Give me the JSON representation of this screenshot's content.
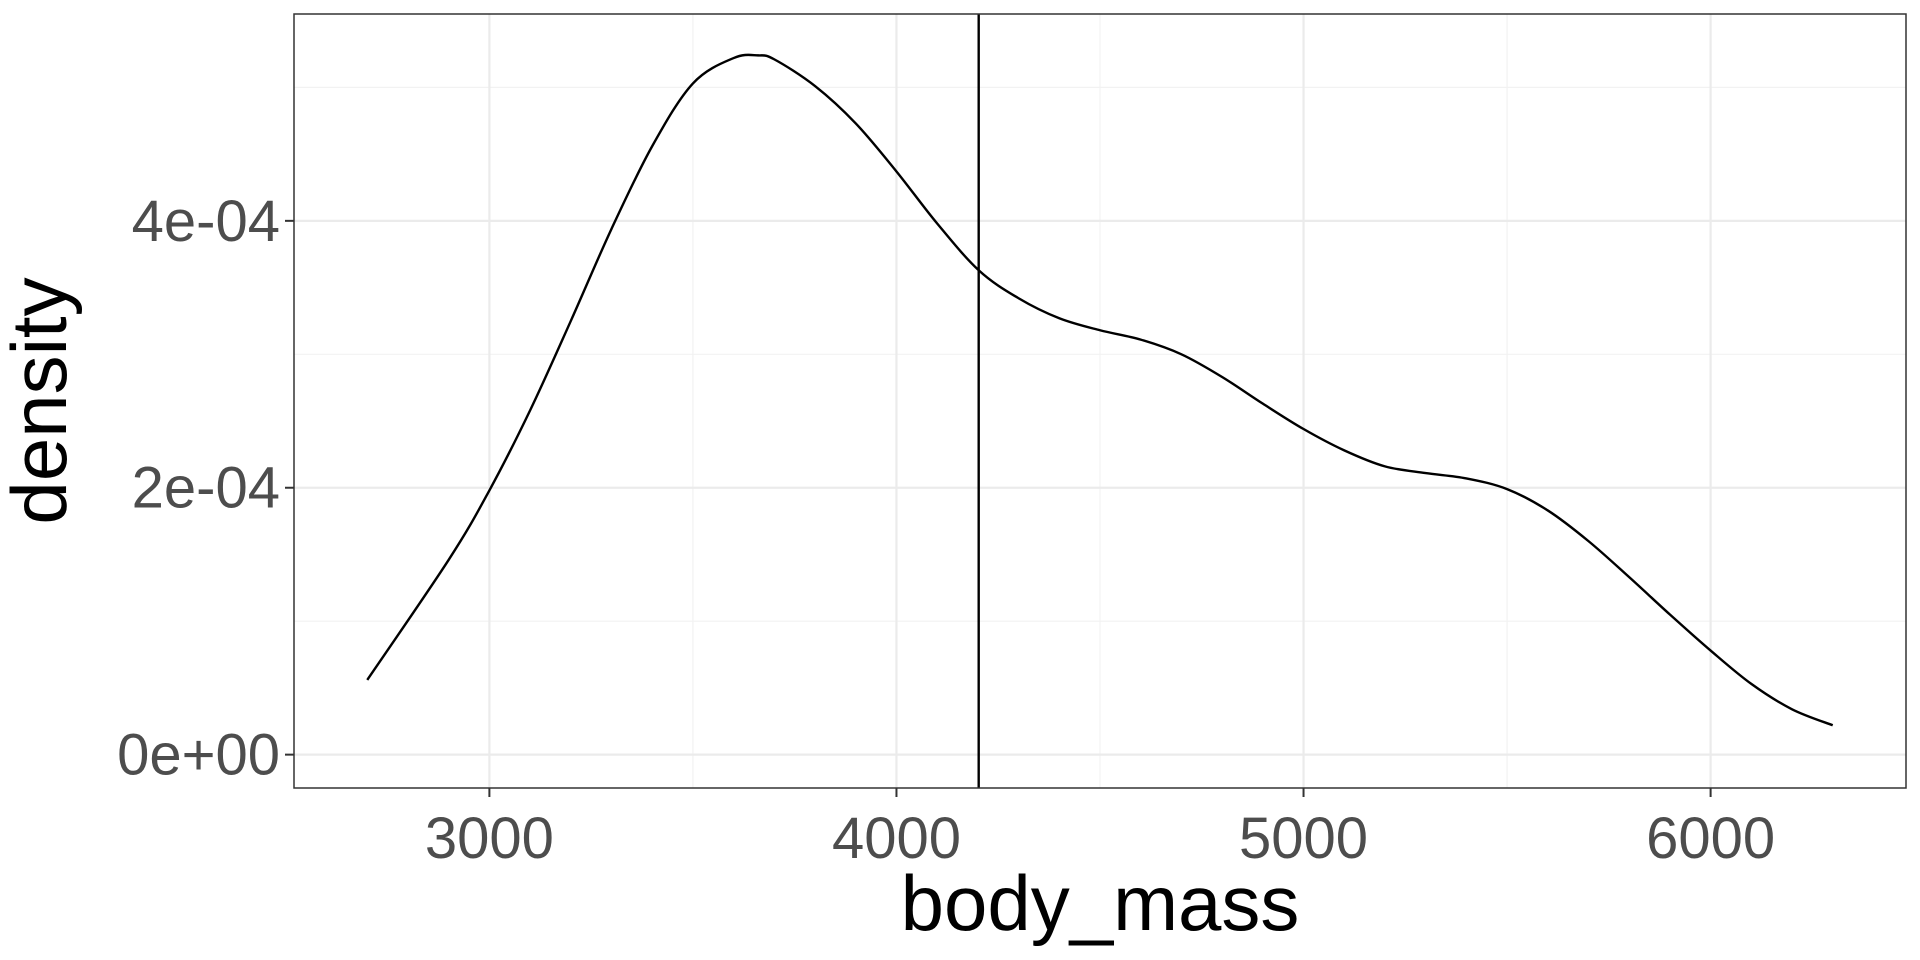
{
  "chart_data": {
    "type": "line",
    "xlabel": "body_mass",
    "ylabel": "density",
    "xlim": [
      2520,
      6480
    ],
    "ylim": [
      -2.5e-05,
      0.000555
    ],
    "x_ticks": [
      {
        "value": 3000,
        "label": "3000"
      },
      {
        "value": 4000,
        "label": "4000"
      },
      {
        "value": 5000,
        "label": "5000"
      },
      {
        "value": 6000,
        "label": "6000"
      }
    ],
    "y_ticks": [
      {
        "value": 0,
        "label": "0e+00"
      },
      {
        "value": 0.0002,
        "label": "2e-04"
      },
      {
        "value": 0.0004,
        "label": "4e-04"
      }
    ],
    "x_minor": [
      3500,
      4500,
      5500
    ],
    "y_minor": [
      0.0001,
      0.0003,
      0.0005
    ],
    "grid": true,
    "vline": {
      "x": 4202
    },
    "series": [
      {
        "x": [
          2700,
          2900,
          3000,
          3100,
          3200,
          3300,
          3400,
          3500,
          3600,
          3660,
          3700,
          3800,
          3900,
          4000,
          4100,
          4202,
          4300,
          4400,
          4500,
          4600,
          4700,
          4800,
          4900,
          5000,
          5100,
          5200,
          5300,
          5400,
          5500,
          5600,
          5700,
          5800,
          5900,
          6000,
          6100,
          6200,
          6300
        ],
        "y": [
          5.6e-05,
          0.000146,
          0.000198,
          0.000258,
          0.000325,
          0.000394,
          0.000456,
          0.000503,
          0.000522,
          0.000524,
          0.000521,
          0.000501,
          0.000473,
          0.000437,
          0.000398,
          0.000363,
          0.000342,
          0.000327,
          0.000318,
          0.000311,
          0.0003,
          0.000283,
          0.000263,
          0.000244,
          0.000228,
          0.000216,
          0.000211,
          0.000207,
          0.000199,
          0.000183,
          0.00016,
          0.000133,
          0.000105,
          7.8e-05,
          5.3e-05,
          3.4e-05,
          2.2e-05
        ]
      }
    ]
  }
}
